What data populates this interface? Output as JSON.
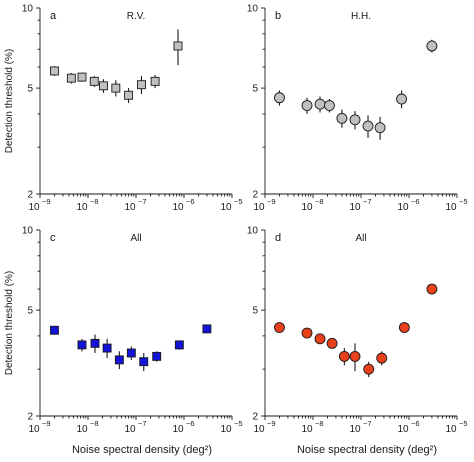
{
  "chart_data": [
    {
      "type": "scatter",
      "panel_label": "a",
      "title": "R.V.",
      "marker": "square",
      "fill": "#c0c0c0",
      "ylabel": "Detection threshold (%)",
      "xlabel": "",
      "x_scale": "log",
      "y_scale": "log",
      "xlim": [
        1e-09,
        1e-05
      ],
      "ylim": [
        2,
        10
      ],
      "points": [
        {
          "x": 2e-09,
          "y": 5.8,
          "err": 0.25
        },
        {
          "x": 4.5e-09,
          "y": 5.45,
          "err": 0.25
        },
        {
          "x": 7.5e-09,
          "y": 5.5,
          "err": 0.22
        },
        {
          "x": 1.35e-08,
          "y": 5.3,
          "err": 0.25
        },
        {
          "x": 2.1e-08,
          "y": 5.1,
          "err": 0.3
        },
        {
          "x": 3.8e-08,
          "y": 5.0,
          "err": 0.35
        },
        {
          "x": 7e-08,
          "y": 4.7,
          "err": 0.3
        },
        {
          "x": 1.3e-07,
          "y": 5.15,
          "err": 0.4
        },
        {
          "x": 2.5e-07,
          "y": 5.3,
          "err": 0.3
        },
        {
          "x": 7.5e-07,
          "y": 7.2,
          "err": 1.1
        }
      ]
    },
    {
      "type": "scatter",
      "panel_label": "b",
      "title": "H.H.",
      "marker": "circle",
      "fill": "#c0c0c0",
      "ylabel": "",
      "xlabel": "",
      "x_scale": "log",
      "y_scale": "log",
      "xlim": [
        1e-09,
        1e-05
      ],
      "ylim": [
        2,
        10
      ],
      "points": [
        {
          "x": 2e-09,
          "y": 4.6,
          "err": 0.3
        },
        {
          "x": 7.5e-09,
          "y": 4.3,
          "err": 0.3
        },
        {
          "x": 1.4e-08,
          "y": 4.35,
          "err": 0.3
        },
        {
          "x": 2.2e-08,
          "y": 4.3,
          "err": 0.25
        },
        {
          "x": 4e-08,
          "y": 3.85,
          "err": 0.3
        },
        {
          "x": 7.5e-08,
          "y": 3.8,
          "err": 0.3
        },
        {
          "x": 1.4e-07,
          "y": 3.6,
          "err": 0.35
        },
        {
          "x": 2.5e-07,
          "y": 3.55,
          "err": 0.35
        },
        {
          "x": 7e-07,
          "y": 4.55,
          "err": 0.35
        },
        {
          "x": 3e-06,
          "y": 7.2,
          "err": 0.4
        }
      ]
    },
    {
      "type": "scatter",
      "panel_label": "c",
      "title": "All",
      "marker": "square",
      "fill": "#1414d8",
      "ylabel": "Detection threshold (%)",
      "xlabel": "Noise spectral density (deg²)",
      "x_scale": "log",
      "y_scale": "log",
      "xlim": [
        1e-09,
        1e-05
      ],
      "ylim": [
        2,
        10
      ],
      "points": [
        {
          "x": 2e-09,
          "y": 4.2,
          "err": 0.15
        },
        {
          "x": 7.5e-09,
          "y": 3.7,
          "err": 0.2
        },
        {
          "x": 1.4e-08,
          "y": 3.75,
          "err": 0.3
        },
        {
          "x": 2.5e-08,
          "y": 3.6,
          "err": 0.3
        },
        {
          "x": 4.5e-08,
          "y": 3.25,
          "err": 0.25
        },
        {
          "x": 8e-08,
          "y": 3.45,
          "err": 0.2
        },
        {
          "x": 1.45e-07,
          "y": 3.2,
          "err": 0.25
        },
        {
          "x": 2.7e-07,
          "y": 3.35,
          "err": 0.15
        },
        {
          "x": 8e-07,
          "y": 3.7,
          "err": 0.15
        },
        {
          "x": 3e-06,
          "y": 4.25,
          "err": 0.15
        }
      ]
    },
    {
      "type": "scatter",
      "panel_label": "d",
      "title": "All",
      "marker": "circle",
      "fill": "#e8401a",
      "ylabel": "",
      "xlabel": "Noise spectral density (deg²)",
      "x_scale": "log",
      "y_scale": "log",
      "xlim": [
        1e-09,
        1e-05
      ],
      "ylim": [
        2,
        10
      ],
      "points": [
        {
          "x": 2e-09,
          "y": 4.3,
          "err": 0.15
        },
        {
          "x": 7.5e-09,
          "y": 4.1,
          "err": 0.15
        },
        {
          "x": 1.4e-08,
          "y": 3.9,
          "err": 0.15
        },
        {
          "x": 2.5e-08,
          "y": 3.75,
          "err": 0.15
        },
        {
          "x": 4.5e-08,
          "y": 3.35,
          "err": 0.25
        },
        {
          "x": 7.5e-08,
          "y": 3.35,
          "err": 0.4
        },
        {
          "x": 1.45e-07,
          "y": 3.0,
          "err": 0.2
        },
        {
          "x": 2.7e-07,
          "y": 3.3,
          "err": 0.2
        },
        {
          "x": 8e-07,
          "y": 4.3,
          "err": 0.2
        },
        {
          "x": 3e-06,
          "y": 6.0,
          "err": 0.2
        }
      ]
    }
  ],
  "axes": {
    "y_tick_labels": [
      "10",
      "5",
      "2"
    ],
    "y_tick_values": [
      10,
      5,
      2
    ],
    "x_tick_exponents": [
      -9,
      -8,
      -7,
      -6,
      -5
    ],
    "x_tick_base": "10"
  }
}
